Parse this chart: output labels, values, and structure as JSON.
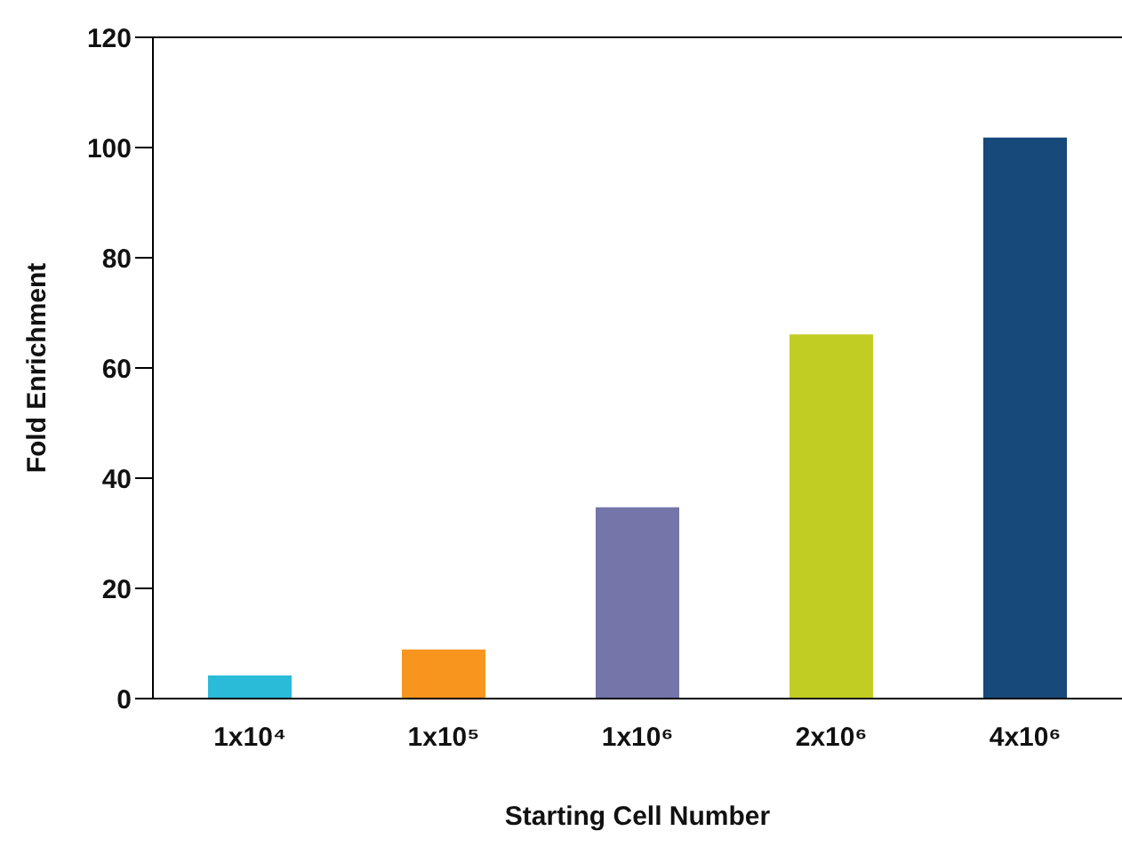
{
  "chart_data": {
    "type": "bar",
    "xlabel": "Starting Cell Number",
    "ylabel": "Fold Enrichment",
    "categories": [
      "1x10⁴",
      "1x10⁵",
      "1x10⁶",
      "2x10⁶",
      "4x10⁶"
    ],
    "values": [
      4.2,
      8.9,
      34.7,
      66.1,
      101.8
    ],
    "colors": [
      "#29bbd8",
      "#f7951f",
      "#7475a9",
      "#c2cd23",
      "#17497a"
    ],
    "ylim": [
      0,
      120
    ],
    "yticks": [
      0,
      20,
      40,
      60,
      80,
      100,
      120
    ],
    "grid": false,
    "legend": false
  }
}
